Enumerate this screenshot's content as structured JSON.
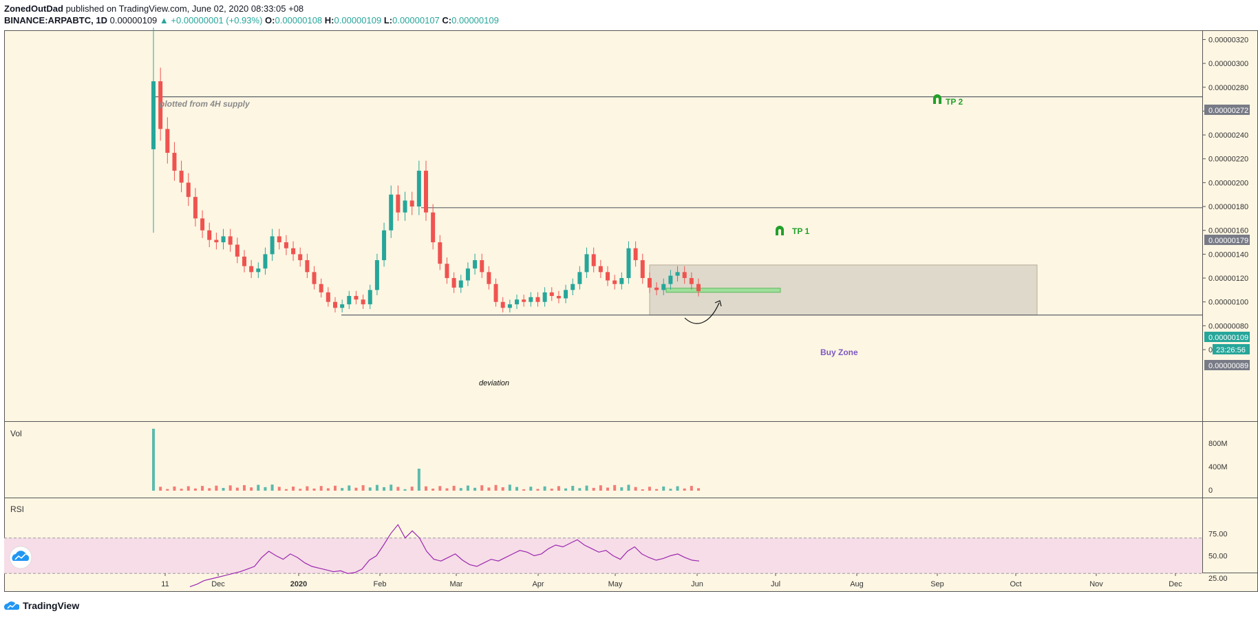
{
  "header": {
    "author": "ZonedOutDad",
    "published": "published on TradingView.com, June 02, 2020 08:33:05 +08",
    "symbol": "BINANCE:ARPABTC, 1D",
    "last": "0.00000109",
    "change": "▲ +0.00000001 (+0.93%)",
    "o_label": "O:",
    "o_value": "0.00000108",
    "h_label": "H:",
    "h_value": "0.00000109",
    "l_label": "L:",
    "l_value": "0.00000107",
    "c_label": "C:",
    "c_value": "0.00000109"
  },
  "footer": {
    "brand": "TradingView",
    "logo_icon": "tradingview-cloud-icon"
  },
  "colors": {
    "background": "#fdf6e3",
    "bull": "#26a69a",
    "bear": "#ef5350",
    "rsi_line": "#9c27b0",
    "rsi_band": "#f6dde7",
    "buy_zone": "#d9d4c7",
    "tp": "#22a02a",
    "buy_zone_text": "#7e57c2"
  },
  "annotations": {
    "supply_note": "plotted from 4H supply",
    "tp1": "TP 1",
    "tp2": "TP 2",
    "deviation": "deviation",
    "buy_zone": "Buy Zone"
  },
  "badges": {
    "tp2_level": "0.00000272",
    "tp1_level": "0.00000179",
    "price": "0.00000109",
    "countdown": "23:26:56",
    "support_level": "0.00000089"
  },
  "panes": {
    "vol_label": "Vol",
    "rsi_label": "RSI"
  },
  "chart_data": {
    "type": "candlestick",
    "symbol": "BINANCE:ARPABTC",
    "interval": "1D",
    "price_axis": {
      "ticks": [
        "0.00000320",
        "0.00000300",
        "0.00000280",
        "0.00000260",
        "0.00000240",
        "0.00000220",
        "0.00000200",
        "0.00000180",
        "0.00000160",
        "0.00000140",
        "0.00000120",
        "0.00000100",
        "0.00000080",
        "0.00000060"
      ],
      "ylim": [
        5e-07,
        3.3e-06
      ]
    },
    "time_axis": {
      "ticks": [
        "11",
        "Dec",
        "2020",
        "Feb",
        "Mar",
        "Apr",
        "May",
        "Jun",
        "Jul",
        "Aug",
        "Sep",
        "Oct",
        "Nov",
        "Dec"
      ]
    },
    "horizontal_levels": [
      {
        "name": "TP 2",
        "value": 2.72e-06
      },
      {
        "name": "TP 1",
        "value": 1.79e-06
      },
      {
        "name": "support",
        "value": 8.9e-07
      }
    ],
    "buy_zone": {
      "low": 8.9e-07,
      "high": 1.31e-06
    },
    "closes_sampled": [
      2.85e-06,
      2.45e-06,
      2.25e-06,
      2.1e-06,
      2e-06,
      1.88e-06,
      1.7e-06,
      1.6e-06,
      1.52e-06,
      1.5e-06,
      1.55e-06,
      1.48e-06,
      1.38e-06,
      1.3e-06,
      1.25e-06,
      1.28e-06,
      1.4e-06,
      1.55e-06,
      1.5e-06,
      1.45e-06,
      1.4e-06,
      1.35e-06,
      1.25e-06,
      1.15e-06,
      1.08e-06,
      1e-06,
      9.5e-07,
      9.8e-07,
      1.05e-06,
      1.02e-06,
      9.8e-07,
      1.1e-06,
      1.35e-06,
      1.6e-06,
      1.9e-06,
      1.75e-06,
      1.85e-06,
      1.8e-06,
      2.1e-06,
      1.75e-06,
      1.5e-06,
      1.32e-06,
      1.2e-06,
      1.12e-06,
      1.18e-06,
      1.28e-06,
      1.35e-06,
      1.25e-06,
      1.15e-06,
      1e-06,
      9.5e-07,
      9.8e-07,
      1.02e-06,
      1e-06,
      1.04e-06,
      1e-06,
      1.08e-06,
      1.05e-06,
      1.03e-06,
      1.1e-06,
      1.15e-06,
      1.25e-06,
      1.4e-06,
      1.3e-06,
      1.25e-06,
      1.18e-06,
      1.15e-06,
      1.2e-06,
      1.45e-06,
      1.35e-06,
      1.2e-06,
      1.12e-06,
      1.1e-06,
      1.15e-06,
      1.22e-06,
      1.25e-06,
      1.2e-06,
      1.15e-06,
      1.09e-06
    ],
    "volume_axis": {
      "ticks": [
        "800M",
        "400M",
        "0"
      ]
    },
    "rsi_axis": {
      "ticks": [
        "75.00",
        "50.00",
        "25.00"
      ],
      "band": [
        30,
        70
      ]
    },
    "rsi_sampled": [
      15,
      18,
      22,
      24,
      26,
      28,
      30,
      32,
      35,
      38,
      48,
      55,
      50,
      46,
      52,
      48,
      42,
      38,
      36,
      34,
      32,
      33,
      30,
      31,
      35,
      45,
      50,
      62,
      75,
      85,
      70,
      78,
      70,
      55,
      46,
      44,
      48,
      52,
      45,
      40,
      38,
      42,
      46,
      44,
      48,
      52,
      56,
      54,
      50,
      52,
      58,
      62,
      60,
      64,
      68,
      62,
      58,
      54,
      56,
      50,
      46,
      55,
      60,
      52,
      48,
      45,
      47,
      50,
      52,
      48,
      45,
      44
    ]
  }
}
